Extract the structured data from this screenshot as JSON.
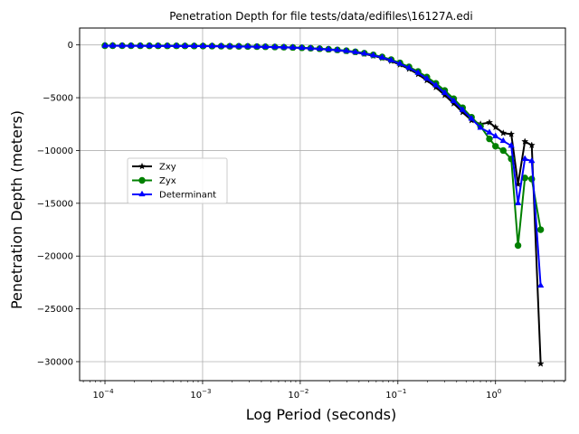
{
  "chart_data": {
    "type": "line",
    "title": "Penetration Depth for file tests/data/edifiles\\16127A.edi",
    "xlabel": "Log Period (seconds)",
    "ylabel": "Penetration Depth (meters)",
    "xscale": "log",
    "xlim": [
      5.5e-05,
      5.2
    ],
    "ylim": [
      -31800,
      1600
    ],
    "grid": true,
    "legend_position": "center-left",
    "x_ticks": [
      {
        "value": 0.0001,
        "base": "10",
        "exp": "−4"
      },
      {
        "value": 0.001,
        "base": "10",
        "exp": "−3"
      },
      {
        "value": 0.01,
        "base": "10",
        "exp": "−2"
      },
      {
        "value": 0.1,
        "base": "10",
        "exp": "−1"
      },
      {
        "value": 1,
        "base": "10",
        "exp": "0"
      }
    ],
    "y_ticks": [
      {
        "value": 0,
        "label": "0"
      },
      {
        "value": -5000,
        "label": "−5000"
      },
      {
        "value": -10000,
        "label": "−10000"
      },
      {
        "value": -15000,
        "label": "−15000"
      },
      {
        "value": -20000,
        "label": "−20000"
      },
      {
        "value": -25000,
        "label": "−25000"
      },
      {
        "value": -30000,
        "label": "−30000"
      }
    ],
    "x": [
      9.99e-05,
      0.00012,
      0.00015,
      0.000185,
      0.00023,
      0.000285,
      0.00035,
      0.000435,
      0.00054,
      0.00066,
      0.00082,
      0.00101,
      0.00125,
      0.00155,
      0.0019,
      0.00235,
      0.0029,
      0.0036,
      0.0044,
      0.0055,
      0.0068,
      0.0084,
      0.0104,
      0.0128,
      0.0158,
      0.0195,
      0.024,
      0.0297,
      0.0367,
      0.0453,
      0.056,
      0.069,
      0.0853,
      0.105,
      0.13,
      0.161,
      0.198,
      0.245,
      0.302,
      0.373,
      0.46,
      0.568,
      0.702,
      0.866,
      1.0,
      1.2,
      1.45,
      1.7,
      2.0,
      2.35,
      2.9
    ],
    "series": [
      {
        "name": "Zxy",
        "color": "#000000",
        "marker": "star",
        "values": [
          -80,
          -80,
          -80,
          -85,
          -85,
          -90,
          -95,
          -95,
          -100,
          -105,
          -110,
          -115,
          -120,
          -130,
          -140,
          -150,
          -160,
          -175,
          -190,
          -210,
          -230,
          -260,
          -290,
          -330,
          -380,
          -440,
          -510,
          -600,
          -710,
          -850,
          -1030,
          -1250,
          -1530,
          -1870,
          -2280,
          -2780,
          -3360,
          -4020,
          -4760,
          -5550,
          -6380,
          -7150,
          -7500,
          -7350,
          -7800,
          -8350,
          -8450,
          -13200,
          -9150,
          -9500,
          -30200
        ]
      },
      {
        "name": "Zyx",
        "color": "#008000",
        "marker": "circle",
        "values": [
          -70,
          -70,
          -72,
          -75,
          -78,
          -80,
          -85,
          -88,
          -90,
          -95,
          -100,
          -105,
          -110,
          -118,
          -125,
          -135,
          -145,
          -160,
          -175,
          -195,
          -215,
          -240,
          -270,
          -310,
          -355,
          -410,
          -470,
          -550,
          -650,
          -780,
          -940,
          -1140,
          -1390,
          -1700,
          -2080,
          -2520,
          -3040,
          -3640,
          -4320,
          -5100,
          -5950,
          -6850,
          -7700,
          -8900,
          -9600,
          -10000,
          -10800,
          -19000,
          -12600,
          -12700,
          -17500
        ]
      },
      {
        "name": "Determinant",
        "color": "#0000ff",
        "marker": "triangle",
        "values": [
          -75,
          -75,
          -76,
          -80,
          -82,
          -85,
          -90,
          -92,
          -95,
          -100,
          -105,
          -110,
          -115,
          -124,
          -132,
          -142,
          -152,
          -168,
          -182,
          -202,
          -222,
          -250,
          -280,
          -320,
          -368,
          -425,
          -490,
          -575,
          -680,
          -815,
          -985,
          -1195,
          -1460,
          -1785,
          -2180,
          -2650,
          -3200,
          -3830,
          -4540,
          -5320,
          -6160,
          -6990,
          -7850,
          -8300,
          -8650,
          -9100,
          -9550,
          -15000,
          -10800,
          -11000,
          -22800
        ]
      }
    ]
  }
}
